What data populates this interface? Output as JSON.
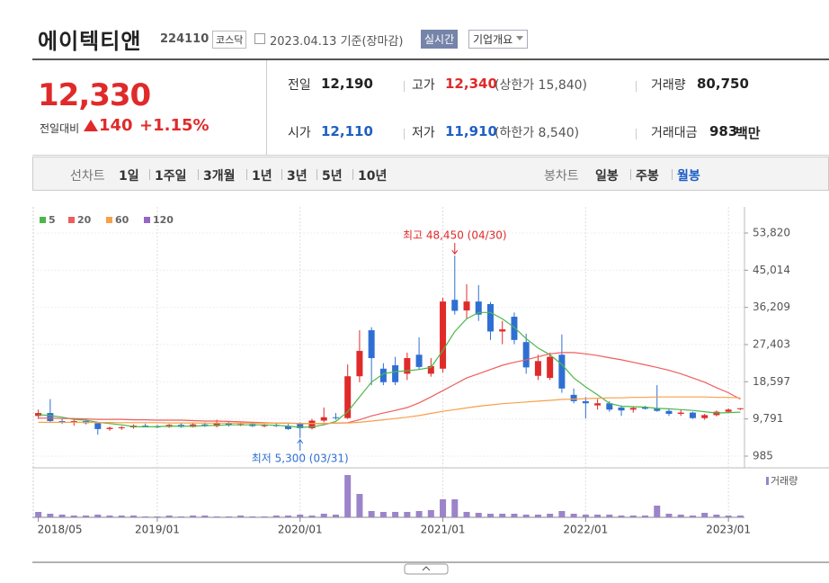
{
  "header": {
    "name": "에이텍티앤",
    "code": "224110",
    "market": "코스닥",
    "date": "2023.04.13 기준(장마감)",
    "realtime": "실시간",
    "company": "기업개요"
  },
  "quote": {
    "price": "12,330",
    "change_label": "전일대비",
    "change": "140",
    "change_pct": "+1.15%",
    "rows": [
      [
        {
          "label": "전일",
          "value": "12,190"
        },
        {
          "label": "고가",
          "value": "12,340",
          "extra": "(상한가 15,840)"
        },
        {
          "label": "거래량",
          "value": "80,750"
        }
      ],
      [
        {
          "label": "시가",
          "value": "12,110"
        },
        {
          "label": "저가",
          "value": "11,910",
          "extra": "(하한가 8,540)"
        },
        {
          "label": "거래대금",
          "value": "983",
          "unit": "백만"
        }
      ]
    ]
  },
  "tabs": {
    "line_label": "선차트",
    "line_items": [
      "1일",
      "1주일",
      "3개월",
      "1년",
      "3년",
      "5년",
      "10년"
    ],
    "candle_label": "봉차트",
    "candle_items": [
      "일봉",
      "주봉",
      "월봉"
    ]
  },
  "chart_data": {
    "type": "candlestick",
    "categories": [
      "2018/05",
      null,
      null,
      null,
      null,
      null,
      null,
      null,
      null,
      null,
      "2019/01",
      null,
      null,
      null,
      null,
      null,
      null,
      null,
      null,
      null,
      null,
      null,
      "2020/01",
      null,
      null,
      null,
      null,
      null,
      null,
      null,
      null,
      null,
      null,
      null,
      "2021/01",
      null,
      null,
      null,
      null,
      null,
      null,
      null,
      null,
      null,
      null,
      null,
      "2022/01",
      null,
      null,
      null,
      null,
      null,
      null,
      null,
      null,
      null,
      null,
      null,
      "2023/01",
      null
    ],
    "open": [
      10500,
      11200,
      9300,
      8900,
      9300,
      8800,
      7400,
      7600,
      7800,
      8200,
      8000,
      7900,
      8400,
      7900,
      8500,
      8100,
      8800,
      8300,
      8600,
      8100,
      8400,
      8100,
      8600,
      7600,
      9400,
      10200,
      10000,
      19900,
      30800,
      21700,
      22500,
      20500,
      25000,
      20500,
      21700,
      38000,
      35500,
      37600,
      37000,
      30500,
      34000,
      28000,
      20000,
      19500,
      25000,
      15500,
      14000,
      13000,
      13500,
      12500,
      12000,
      12500,
      12200,
      11700,
      11000,
      11300,
      10000,
      10700,
      11500,
      12110
    ],
    "high": [
      12000,
      14500,
      9900,
      9600,
      9600,
      9000,
      8000,
      8100,
      8500,
      8700,
      8400,
      8600,
      8800,
      8800,
      9000,
      9600,
      9200,
      8900,
      8800,
      8600,
      8900,
      8600,
      9000,
      9800,
      12500,
      11200,
      22700,
      30800,
      31500,
      23000,
      24500,
      25500,
      29100,
      24200,
      38500,
      48450,
      41700,
      41500,
      37500,
      33000,
      35000,
      30000,
      25000,
      25500,
      29800,
      17000,
      15000,
      14500,
      14000,
      13000,
      12800,
      12900,
      17800,
      12300,
      12000,
      11500,
      11000,
      11800,
      12300,
      12340
    ],
    "low": [
      9800,
      9000,
      8600,
      8200,
      8500,
      6100,
      7000,
      7200,
      7500,
      7800,
      7600,
      7700,
      7700,
      7800,
      7900,
      7800,
      8000,
      8100,
      7900,
      7800,
      7900,
      7200,
      5300,
      7300,
      9000,
      9600,
      9800,
      18500,
      17800,
      17800,
      17800,
      19000,
      21500,
      19800,
      20800,
      34500,
      33500,
      33000,
      28500,
      27500,
      27500,
      20500,
      19000,
      19000,
      16000,
      13500,
      9900,
      12000,
      11500,
      10500,
      11300,
      12000,
      11500,
      10500,
      10500,
      9800,
      9600,
      10400,
      11200,
      11910
    ],
    "close": [
      11200,
      9300,
      8900,
      9300,
      8800,
      7400,
      7700,
      7800,
      8200,
      8000,
      7900,
      8400,
      7900,
      8500,
      8100,
      8800,
      8300,
      8600,
      8100,
      8400,
      8100,
      7400,
      7600,
      9400,
      10200,
      10000,
      19900,
      25900,
      24200,
      18500,
      18500,
      24200,
      22100,
      22300,
      37600,
      35400,
      37600,
      34500,
      30500,
      31000,
      28500,
      22000,
      23500,
      24500,
      17000,
      14000,
      13500,
      13500,
      12000,
      11800,
      12400,
      12200,
      11700,
      11000,
      11300,
      10000,
      10700,
      11500,
      12000,
      12330
    ],
    "up_color": "#e02a2a",
    "down_color": "#2f6fd3",
    "ylim": [
      985,
      53820
    ],
    "yticks": [
      {
        "value": 985,
        "label": "985"
      },
      {
        "value": 9791,
        "label": "9,791"
      },
      {
        "value": 18597,
        "label": "18,597"
      },
      {
        "value": 27403,
        "label": "27,403"
      },
      {
        "value": 36209,
        "label": "36,209"
      },
      {
        "value": 45014,
        "label": "45,014"
      },
      {
        "value": 53820,
        "label": "53,820"
      }
    ],
    "grid": true,
    "series": [
      {
        "name": "5",
        "color": "#4cb848",
        "values": [
          10800,
          10600,
          10200,
          9700,
          9500,
          9000,
          8700,
          8400,
          8000,
          7900,
          8000,
          8100,
          8100,
          8100,
          8200,
          8300,
          8400,
          8400,
          8400,
          8400,
          8300,
          8100,
          7800,
          7900,
          8400,
          9200,
          11500,
          15000,
          18500,
          20500,
          21000,
          21200,
          21500,
          22000,
          26000,
          30500,
          33500,
          35000,
          35000,
          33500,
          31500,
          28800,
          26600,
          25000,
          22700,
          19500,
          17400,
          15500,
          13500,
          12800,
          12700,
          12600,
          12300,
          12200,
          12000,
          11800,
          11500,
          11200,
          11300,
          11400
        ]
      },
      {
        "name": "20",
        "color": "#ef5d5d",
        "values": [
          10000,
          10000,
          9900,
          9900,
          9800,
          9700,
          9700,
          9700,
          9600,
          9600,
          9500,
          9500,
          9500,
          9400,
          9300,
          9300,
          9200,
          9100,
          9000,
          8900,
          8800,
          8800,
          8700,
          8700,
          8700,
          8800,
          8900,
          9600,
          10500,
          11200,
          11800,
          12500,
          13600,
          15000,
          16500,
          18000,
          19500,
          20500,
          21500,
          22500,
          23200,
          23800,
          24500,
          25200,
          25500,
          25500,
          25200,
          24800,
          24300,
          23800,
          23200,
          22600,
          22000,
          21300,
          20500,
          19500,
          18500,
          17200,
          16000,
          14500
        ]
      },
      {
        "name": "60",
        "color": "#f7a04a",
        "values": [
          9000,
          9000,
          9000,
          9000,
          9000,
          8950,
          8950,
          8900,
          8900,
          8900,
          8900,
          8850,
          8850,
          8850,
          8800,
          8800,
          8800,
          8800,
          8800,
          8800,
          8800,
          8800,
          8750,
          8750,
          8750,
          8800,
          8850,
          9000,
          9300,
          9600,
          9900,
          10200,
          10600,
          11100,
          11600,
          12000,
          12400,
          12800,
          13100,
          13400,
          13600,
          13800,
          14000,
          14200,
          14400,
          14500,
          14600,
          14700,
          14800,
          14800,
          14900,
          14900,
          15000,
          15000,
          15000,
          15000,
          15000,
          14900,
          14900,
          14800
        ]
      },
      {
        "name": "120",
        "color": "#9466c8",
        "values": [
          null,
          null,
          null,
          null,
          null,
          null,
          null,
          null,
          null,
          null,
          null,
          null,
          null,
          null,
          null,
          null,
          null,
          null,
          null,
          null,
          null,
          null,
          null,
          null,
          null,
          null,
          null,
          null,
          null,
          null,
          null,
          null,
          null,
          null,
          null,
          null,
          null,
          null,
          null,
          null,
          null,
          null,
          null,
          null,
          null,
          null,
          null,
          null,
          null,
          null,
          null,
          null,
          null,
          null,
          null,
          null,
          null,
          null,
          null,
          null
        ]
      }
    ],
    "volume": {
      "name": "거래량",
      "color": "#9b84c9",
      "values": [
        120000,
        80000,
        60000,
        40000,
        40000,
        60000,
        40000,
        40000,
        40000,
        20000,
        20000,
        40000,
        20000,
        40000,
        40000,
        20000,
        20000,
        40000,
        20000,
        20000,
        40000,
        40000,
        60000,
        40000,
        80000,
        60000,
        940000,
        520000,
        140000,
        120000,
        120000,
        120000,
        140000,
        160000,
        400000,
        400000,
        120000,
        100000,
        80000,
        80000,
        80000,
        60000,
        60000,
        80000,
        140000,
        80000,
        60000,
        60000,
        60000,
        40000,
        40000,
        40000,
        260000,
        80000,
        60000,
        40000,
        100000,
        60000,
        40000,
        40000
      ]
    },
    "annotations": [
      {
        "text": "최고 48,450 (04/30)",
        "color": "#e02a2a"
      },
      {
        "text": "최저 5,300 (03/31)",
        "color": "#2f6fd3"
      }
    ]
  }
}
